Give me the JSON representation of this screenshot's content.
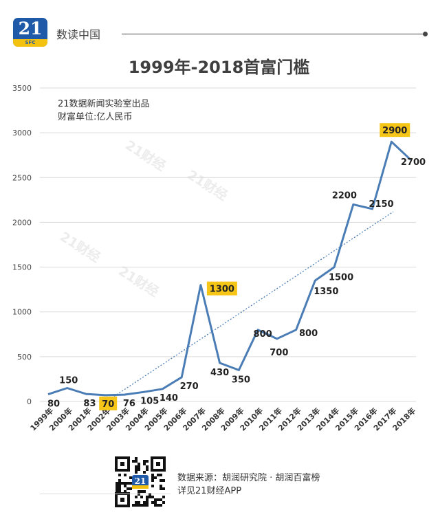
{
  "header": {
    "logo_number": "21",
    "logo_sub": "SFC",
    "brand": "数读中国"
  },
  "title": "1999年-2018首富门槛",
  "credit": {
    "line1": "21数据新闻实验室出品",
    "line2": "财富单位:亿人民币"
  },
  "watermark": "21财经",
  "colors": {
    "line": "#4a7cb5",
    "trend": "#4a7cb5",
    "highlight": "#f5c518",
    "grid": "#d9d9d9"
  },
  "chart_data": {
    "type": "line",
    "categories": [
      "1999年",
      "2000年",
      "2001年",
      "2002年",
      "2003年",
      "2004年",
      "2005年",
      "2006年",
      "2007年",
      "2008年",
      "2009年",
      "2010年",
      "2011年",
      "2012年",
      "2013年",
      "2014年",
      "2015年",
      "2016年",
      "2017年",
      "2018年"
    ],
    "values": [
      80,
      150,
      83,
      70,
      76,
      105,
      140,
      270,
      1300,
      430,
      350,
      800,
      700,
      800,
      1350,
      1500,
      2200,
      2150,
      2900,
      2700
    ],
    "data_labels": [
      "80",
      "150",
      "83",
      "70",
      "76",
      "105",
      "140",
      "270",
      "1300",
      "430",
      "350",
      "800",
      "700",
      "800",
      "1350",
      "1500",
      "2200",
      "2150",
      "2900",
      "2700"
    ],
    "highlighted": [
      3,
      8,
      18
    ],
    "trendline": "linear",
    "ylim": [
      0,
      3500
    ],
    "yticks": [
      0,
      500,
      1000,
      1500,
      2000,
      2500,
      3000,
      3500
    ],
    "ytick_labels": [
      "0",
      "500",
      "1000",
      "1500",
      "2000",
      "2500",
      "3000",
      "3500"
    ],
    "grid": true,
    "legend": "none"
  },
  "footer": {
    "qr_badge": "21",
    "source_line1": "数据来源：胡润研究院 · 胡润百富榜",
    "source_line2": "详见21财经APP"
  }
}
